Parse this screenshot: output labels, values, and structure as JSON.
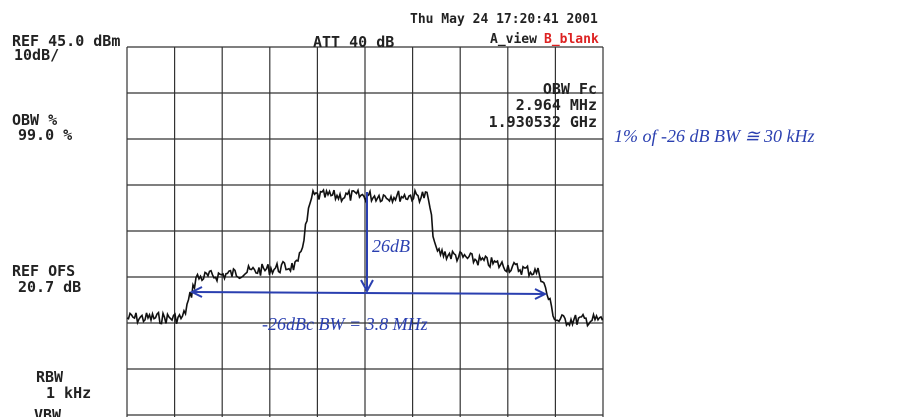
{
  "header": {
    "ref_level": "REF 45.0 dBm",
    "scale": "10dB/",
    "attenuation": "ATT 40 dB",
    "timestamp": "Thu May 24 17:20:41 2001",
    "view_a": "A_view",
    "view_b": "B_blank"
  },
  "left_panel": {
    "obw_label": "OBW %",
    "obw_value": "99.0 %",
    "ref_offset_label": "REF OFS",
    "ref_offset_value": "20.7 dB",
    "rbw_label": "RBW",
    "rbw_value": "1 kHz",
    "vbw_label": "VBW"
  },
  "marker": {
    "label": "OBW Fc",
    "bandwidth": "2.964 MHz",
    "center": "1.930532 GHz"
  },
  "annotations": {
    "note": "1% of -26 dB BW ≅ 30 kHz",
    "drop": "26dB",
    "bandwidth": "-26dBc BW = 3.8 MHz"
  }
}
